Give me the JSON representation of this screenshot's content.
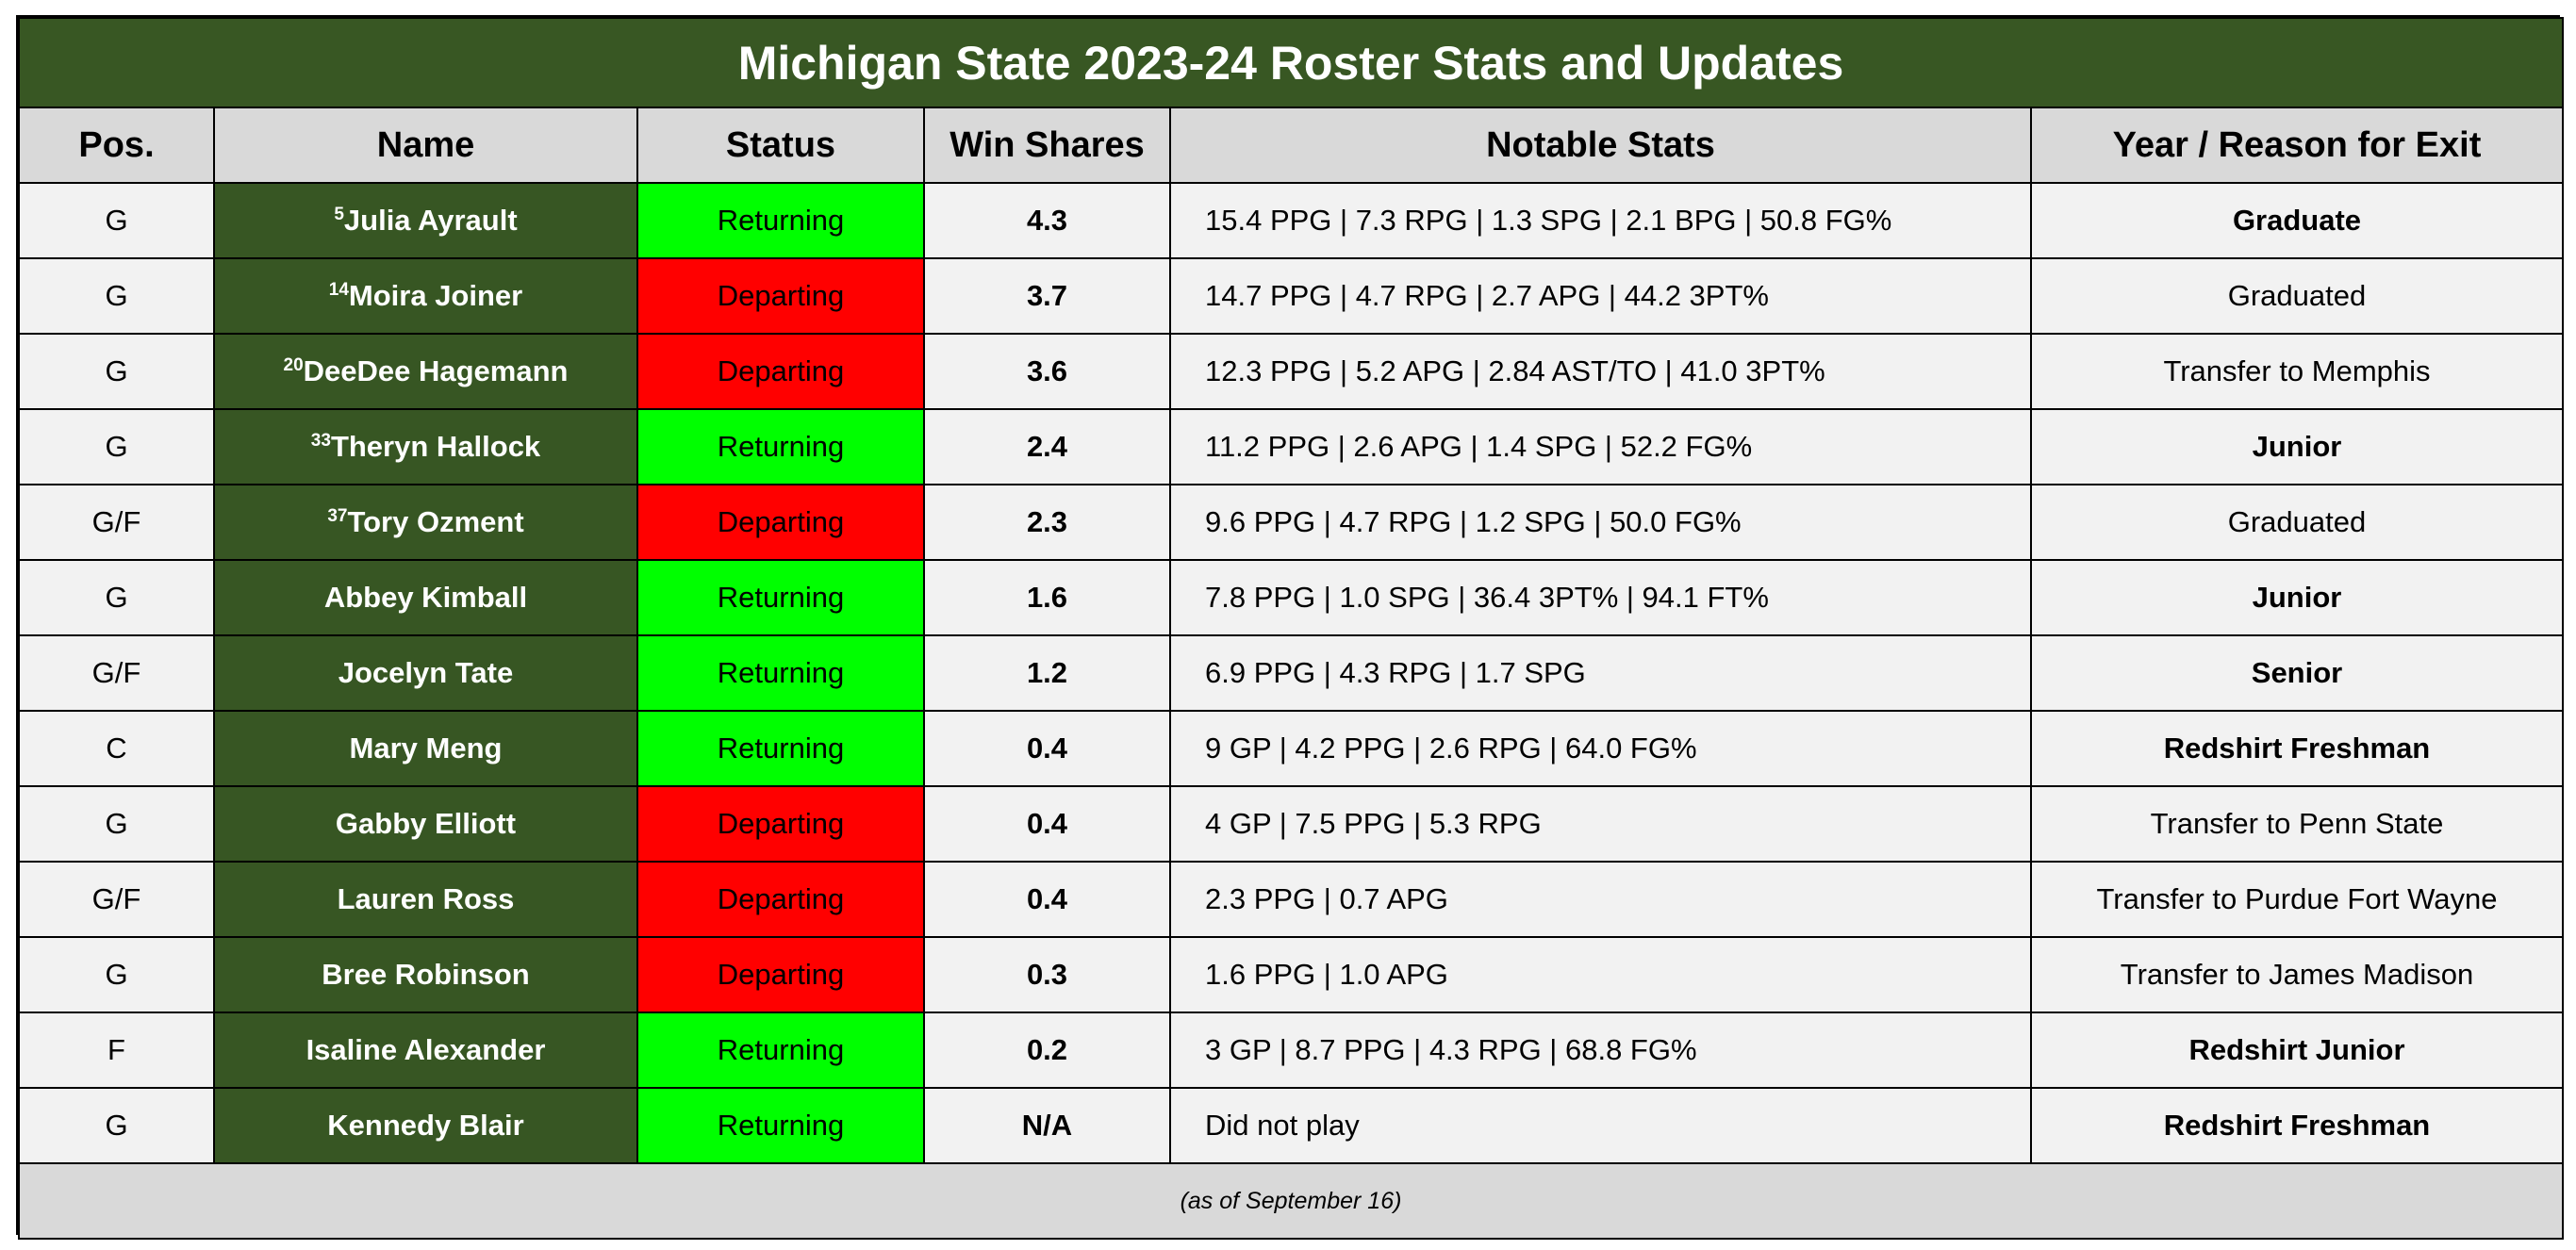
{
  "title": "Michigan State 2023-24 Roster Stats and Updates",
  "headers": {
    "pos": "Pos.",
    "name": "Name",
    "status": "Status",
    "win_shares": "Win Shares",
    "notable_stats": "Notable Stats",
    "year_exit": "Year / Reason for Exit"
  },
  "colors": {
    "title_bg": "#385723",
    "name_bg": "#375623",
    "header_bg": "#d9d9d9",
    "returning": "#00ff00",
    "departing": "#ff0000"
  },
  "rows": [
    {
      "pos": "G",
      "number": "5",
      "name": "Julia Ayrault",
      "status": "Returning",
      "win_shares": "4.3",
      "stats": "15.4 PPG | 7.3 RPG | 1.3 SPG | 2.1 BPG | 50.8 FG%",
      "exit": "Graduate",
      "exit_bold": true
    },
    {
      "pos": "G",
      "number": "14",
      "name": "Moira Joiner",
      "status": "Departing",
      "win_shares": "3.7",
      "stats": "14.7 PPG | 4.7 RPG | 2.7 APG | 44.2 3PT%",
      "exit": "Graduated",
      "exit_bold": false
    },
    {
      "pos": "G",
      "number": "20",
      "name": "DeeDee Hagemann",
      "status": "Departing",
      "win_shares": "3.6",
      "stats": "12.3 PPG | 5.2 APG | 2.84 AST/TO | 41.0 3PT%",
      "exit": "Transfer to Memphis",
      "exit_bold": false
    },
    {
      "pos": "G",
      "number": "33",
      "name": "Theryn Hallock",
      "status": "Returning",
      "win_shares": "2.4",
      "stats": "11.2 PPG | 2.6 APG | 1.4 SPG | 52.2 FG%",
      "exit": "Junior",
      "exit_bold": true
    },
    {
      "pos": "G/F",
      "number": "37",
      "name": "Tory Ozment",
      "status": "Departing",
      "win_shares": "2.3",
      "stats": "9.6 PPG | 4.7 RPG | 1.2 SPG | 50.0 FG%",
      "exit": "Graduated",
      "exit_bold": false
    },
    {
      "pos": "G",
      "number": "",
      "name": "Abbey Kimball",
      "status": "Returning",
      "win_shares": "1.6",
      "stats": "7.8 PPG | 1.0 SPG | 36.4 3PT% | 94.1 FT%",
      "exit": "Junior",
      "exit_bold": true
    },
    {
      "pos": "G/F",
      "number": "",
      "name": "Jocelyn Tate",
      "status": "Returning",
      "win_shares": "1.2",
      "stats": "6.9 PPG | 4.3 RPG | 1.7 SPG",
      "exit": "Senior",
      "exit_bold": true
    },
    {
      "pos": "C",
      "number": "",
      "name": "Mary Meng",
      "status": "Returning",
      "win_shares": "0.4",
      "stats": "9 GP | 4.2 PPG | 2.6 RPG | 64.0 FG%",
      "exit": "Redshirt Freshman",
      "exit_bold": true
    },
    {
      "pos": "G",
      "number": "",
      "name": "Gabby Elliott",
      "status": "Departing",
      "win_shares": "0.4",
      "stats": "4 GP | 7.5 PPG | 5.3 RPG",
      "exit": "Transfer to Penn State",
      "exit_bold": false
    },
    {
      "pos": "G/F",
      "number": "",
      "name": "Lauren Ross",
      "status": "Departing",
      "win_shares": "0.4",
      "stats": "2.3 PPG | 0.7 APG",
      "exit": "Transfer to Purdue Fort Wayne",
      "exit_bold": false
    },
    {
      "pos": "G",
      "number": "",
      "name": "Bree Robinson",
      "status": "Departing",
      "win_shares": "0.3",
      "stats": "1.6 PPG | 1.0 APG",
      "exit": "Transfer to James Madison",
      "exit_bold": false
    },
    {
      "pos": "F",
      "number": "",
      "name": "Isaline Alexander",
      "status": "Returning",
      "win_shares": "0.2",
      "stats": "3 GP | 8.7 PPG | 4.3 RPG | 68.8 FG%",
      "exit": "Redshirt Junior",
      "exit_bold": true
    },
    {
      "pos": "G",
      "number": "",
      "name": "Kennedy Blair",
      "status": "Returning",
      "win_shares": "N/A",
      "stats": "Did not play",
      "exit": "Redshirt Freshman",
      "exit_bold": true
    }
  ],
  "footer": "(as of September 16)"
}
